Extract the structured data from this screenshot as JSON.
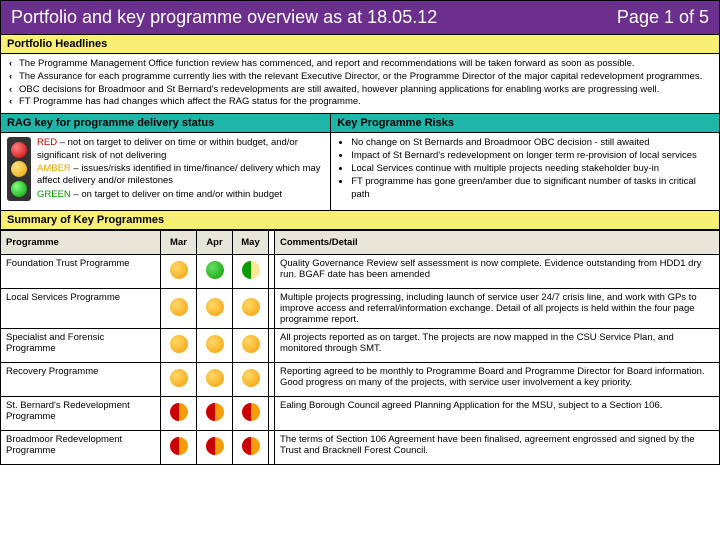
{
  "header": {
    "title": "Portfolio and key programme overview as at 18.05.12",
    "page": "Page 1 of 5"
  },
  "headlines": {
    "title": "Portfolio Headlines",
    "items": [
      "The Programme Management Office function review has commenced, and report and recommendations will be taken forward as soon as possible.",
      "The Assurance for each programme currently lies with the relevant Executive Director, or the Programme Director of the major capital redevelopment programmes.",
      "OBC decisions for Broadmoor and St Bernard's redevelopments are still awaited, however planning applications for enabling works are progressing well.",
      "FT Programme has had changes which affect the RAG status for the programme."
    ]
  },
  "rag": {
    "title": "RAG key for programme delivery status",
    "red_label": "RED",
    "red_text": " –     not on target to deliver on time or within budget, and/or significant risk of not delivering",
    "amber_label": "AMBER",
    "amber_text": " –  issues/risks identified in time/finance/ delivery which may affect delivery and/or milestones",
    "green_label": "GREEN",
    "green_text": " –  on target to deliver on time and/or within budget"
  },
  "risks": {
    "title": "Key Programme Risks",
    "items": [
      "No change on St Bernards and Broadmoor OBC decision - still awaited",
      "Impact of St Bernard's redevelopment  on longer term re-provision of local services",
      "Local Services continue with multiple projects needing stakeholder buy-in",
      "FT programme has gone green/amber due to significant number of tasks in critical path"
    ]
  },
  "summary": {
    "title": "Summary of Key Programmes"
  },
  "table": {
    "cols": {
      "prog": "Programme",
      "m1": "Mar",
      "m2": "Apr",
      "m3": "May",
      "comments": "Comments/Detail"
    },
    "rows": [
      {
        "name": "Foundation Trust Programme",
        "m1": "d-amber",
        "m2": "d-green",
        "m3": "d-green-amber",
        "comment": "Quality Governance Review self assessment is now complete. Evidence outstanding from HDD1 dry run. BGAF date has been amended"
      },
      {
        "name": "Local Services Programme",
        "m1": "d-amber",
        "m2": "d-amber",
        "m3": "d-amber",
        "comment": "Multiple projects progressing, including launch of service user 24/7 crisis line, and work with GPs to improve access and referral/information exchange. Detail of all projects is held within the four page programme report."
      },
      {
        "name": "Specialist and Forensic Programme",
        "m1": "d-amber",
        "m2": "d-amber",
        "m3": "d-amber",
        "comment": "All projects reported as on target. The projects are now mapped in the CSU Service Plan, and monitored through SMT."
      },
      {
        "name": "Recovery Programme",
        "m1": "d-amber",
        "m2": "d-amber",
        "m3": "d-amber",
        "comment": "Reporting agreed to be monthly to Programme Board and Programme Director for Board information. Good progress on many of the projects, with service user involvement a key priority."
      },
      {
        "name": "St. Bernard's Redevelopment Programme",
        "m1": "d-red-amber",
        "m2": "d-red-amber",
        "m3": "d-red-amber",
        "comment": "Ealing Borough Council agreed Planning Application for the MSU, subject to a Section 106."
      },
      {
        "name": "Broadmoor Redevelopment Programme",
        "m1": "d-red-amber",
        "m2": "d-red-amber",
        "m3": "d-red-amber",
        "comment": "The terms of Section 106 Agreement have been finalised, agreement engrossed and signed by the Trust and Bracknell Forest Council."
      }
    ]
  },
  "colors": {
    "header_bg": "#6b2f8e",
    "yellow": "#f7f075",
    "teal": "#1fb5a8",
    "table_head": "#e8e6d8"
  }
}
